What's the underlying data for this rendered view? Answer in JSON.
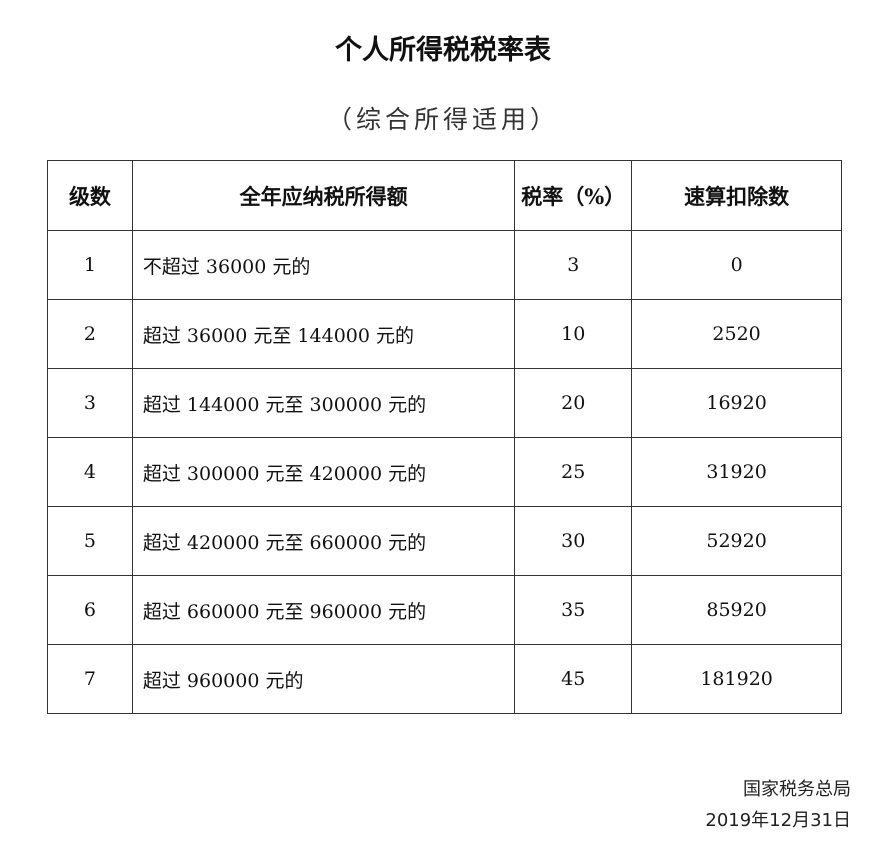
{
  "title": "个人所得税税率表",
  "subtitle": "（综合所得适用）",
  "table": {
    "headers": [
      "级数",
      "全年应纳税所得额",
      "税率（%）",
      "速算扣除数"
    ],
    "rows": [
      [
        "1",
        "不超过 36000 元的",
        "3",
        "0"
      ],
      [
        "2",
        "超过 36000 元至 144000 元的",
        "10",
        "2520"
      ],
      [
        "3",
        "超过 144000 元至 300000 元的",
        "20",
        "16920"
      ],
      [
        "4",
        "超过 300000 元至 420000 元的",
        "25",
        "31920"
      ],
      [
        "5",
        "超过 420000 元至 660000 元的",
        "30",
        "52920"
      ],
      [
        "6",
        "超过 660000 元至 960000 元的",
        "35",
        "85920"
      ],
      [
        "7",
        "超过 960000 元的",
        "45",
        "181920"
      ]
    ]
  },
  "footer": {
    "issuer": "国家税务总局",
    "date": "2019年12月31日"
  }
}
